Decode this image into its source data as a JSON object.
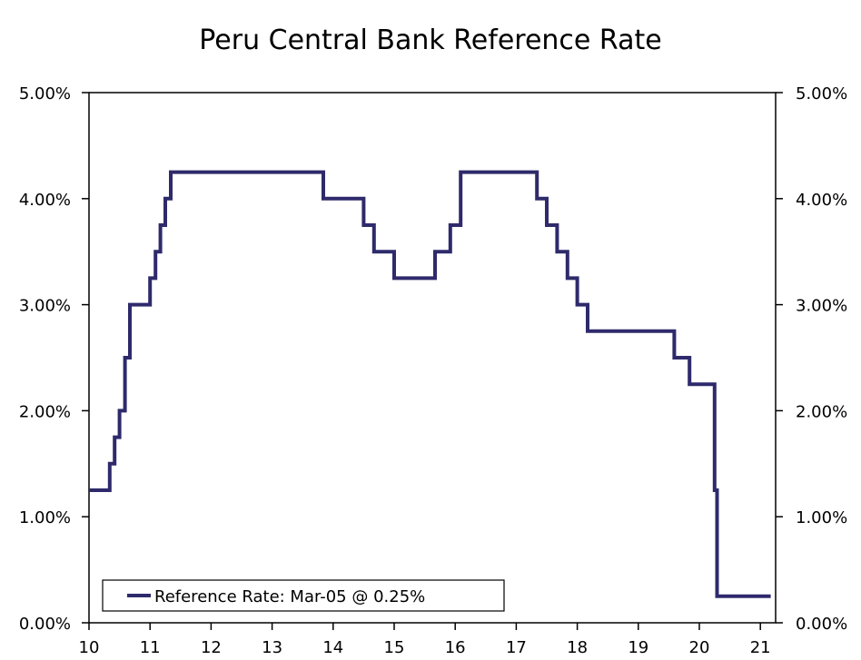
{
  "chart_data": {
    "type": "line",
    "title": "Peru Central Bank Reference Rate",
    "xlabel": "",
    "ylabel": "",
    "x_ticks": [
      "10",
      "11",
      "12",
      "13",
      "14",
      "15",
      "16",
      "17",
      "18",
      "19",
      "20",
      "21"
    ],
    "y_ticks": [
      "0.00%",
      "1.00%",
      "2.00%",
      "3.00%",
      "4.00%",
      "5.00%"
    ],
    "y_ticks_right": [
      "0.00%",
      "1.00%",
      "2.00%",
      "3.00%",
      "4.00%",
      "5.00%"
    ],
    "ylim": [
      0,
      5
    ],
    "xlim": [
      2010,
      2021.25
    ],
    "grid": false,
    "legend_position": "bottom-left",
    "colors": {
      "series": "#2e2a6b",
      "axis": "#000000"
    },
    "series": [
      {
        "name": "Reference Rate: Mar-05 @ 0.25%",
        "step": true,
        "x": [
          2010.0,
          2010.34,
          2010.42,
          2010.5,
          2010.59,
          2010.67,
          2011.0,
          2011.09,
          2011.17,
          2011.25,
          2011.34,
          2013.84,
          2014.5,
          2014.67,
          2015.0,
          2015.67,
          2015.92,
          2016.09,
          2017.34,
          2017.5,
          2017.67,
          2017.84,
          2018.0,
          2018.17,
          2019.59,
          2019.84,
          2020.25,
          2020.29,
          2021.17
        ],
        "values": [
          1.25,
          1.5,
          1.75,
          2.0,
          2.5,
          3.0,
          3.25,
          3.5,
          3.75,
          4.0,
          4.25,
          4.0,
          3.75,
          3.5,
          3.25,
          3.5,
          3.75,
          4.25,
          4.0,
          3.75,
          3.5,
          3.25,
          3.0,
          2.75,
          2.5,
          2.25,
          1.25,
          0.25,
          0.25
        ]
      }
    ]
  }
}
